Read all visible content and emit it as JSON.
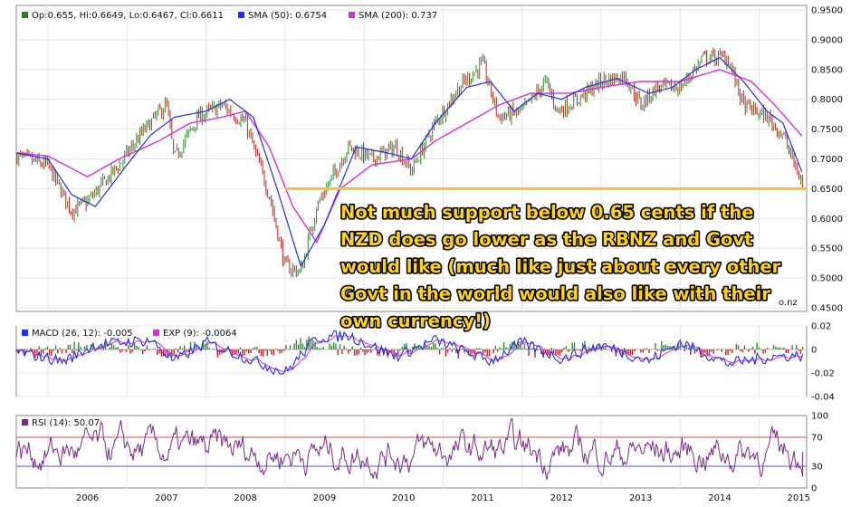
{
  "chart_data": [
    {
      "type": "candlestick",
      "legend": [
        {
          "label": "Op:0.655, Hi:0.6649, Lo:0.6467, Cl:0.6611",
          "color": "#2a7a2a"
        },
        {
          "label": "SMA (50): 0.6754",
          "color": "#1f2ff0"
        },
        {
          "label": "SMA (200): 0.737",
          "color": "#e22be0"
        }
      ],
      "ylim": [
        0.45,
        0.95
      ],
      "y_ticks": [
        "0.9500",
        "0.9000",
        "0.8500",
        "0.8000",
        "0.7500",
        "0.7000",
        "0.6500",
        "0.6000",
        "0.5500",
        "0.5000",
        "0.4500"
      ],
      "x_ticks": [
        "2006",
        "2007",
        "2008",
        "2009",
        "2010",
        "2011",
        "2012",
        "2013",
        "2014",
        "2015"
      ],
      "price_path": [
        [
          2005.6,
          0.705
        ],
        [
          2006.0,
          0.688
        ],
        [
          2006.3,
          0.613
        ],
        [
          2006.5,
          0.628
        ],
        [
          2006.9,
          0.69
        ],
        [
          2007.2,
          0.745
        ],
        [
          2007.5,
          0.792
        ],
        [
          2007.6,
          0.7
        ],
        [
          2007.9,
          0.77
        ],
        [
          2008.2,
          0.79
        ],
        [
          2008.5,
          0.76
        ],
        [
          2008.8,
          0.64
        ],
        [
          2009.0,
          0.52
        ],
        [
          2009.2,
          0.51
        ],
        [
          2009.4,
          0.62
        ],
        [
          2009.8,
          0.72
        ],
        [
          2010.1,
          0.7
        ],
        [
          2010.4,
          0.72
        ],
        [
          2010.6,
          0.68
        ],
        [
          2010.9,
          0.76
        ],
        [
          2011.2,
          0.82
        ],
        [
          2011.5,
          0.86
        ],
        [
          2011.7,
          0.77
        ],
        [
          2012.0,
          0.78
        ],
        [
          2012.3,
          0.83
        ],
        [
          2012.45,
          0.78
        ],
        [
          2012.7,
          0.8
        ],
        [
          2013.0,
          0.83
        ],
        [
          2013.3,
          0.84
        ],
        [
          2013.5,
          0.79
        ],
        [
          2013.7,
          0.82
        ],
        [
          2014.0,
          0.82
        ],
        [
          2014.3,
          0.87
        ],
        [
          2014.6,
          0.87
        ],
        [
          2014.8,
          0.79
        ],
        [
          2015.1,
          0.77
        ],
        [
          2015.3,
          0.74
        ],
        [
          2015.55,
          0.655
        ]
      ],
      "sma50_path": [
        [
          2005.6,
          0.71
        ],
        [
          2006.0,
          0.7
        ],
        [
          2006.3,
          0.64
        ],
        [
          2006.6,
          0.62
        ],
        [
          2007.0,
          0.69
        ],
        [
          2007.3,
          0.74
        ],
        [
          2007.6,
          0.77
        ],
        [
          2008.0,
          0.78
        ],
        [
          2008.3,
          0.8
        ],
        [
          2008.6,
          0.77
        ],
        [
          2008.9,
          0.65
        ],
        [
          2009.2,
          0.52
        ],
        [
          2009.5,
          0.59
        ],
        [
          2009.9,
          0.72
        ],
        [
          2010.3,
          0.71
        ],
        [
          2010.6,
          0.7
        ],
        [
          2010.9,
          0.76
        ],
        [
          2011.3,
          0.82
        ],
        [
          2011.6,
          0.83
        ],
        [
          2011.9,
          0.78
        ],
        [
          2012.2,
          0.81
        ],
        [
          2012.5,
          0.8
        ],
        [
          2012.8,
          0.82
        ],
        [
          2013.2,
          0.835
        ],
        [
          2013.6,
          0.81
        ],
        [
          2013.9,
          0.82
        ],
        [
          2014.2,
          0.85
        ],
        [
          2014.5,
          0.87
        ],
        [
          2014.8,
          0.83
        ],
        [
          2015.1,
          0.78
        ],
        [
          2015.3,
          0.76
        ],
        [
          2015.55,
          0.675
        ]
      ],
      "sma200_path": [
        [
          2005.6,
          0.71
        ],
        [
          2006.0,
          0.705
        ],
        [
          2006.5,
          0.67
        ],
        [
          2006.9,
          0.7
        ],
        [
          2007.4,
          0.73
        ],
        [
          2007.8,
          0.76
        ],
        [
          2008.2,
          0.77
        ],
        [
          2008.5,
          0.78
        ],
        [
          2008.8,
          0.72
        ],
        [
          2009.1,
          0.62
        ],
        [
          2009.4,
          0.56
        ],
        [
          2009.7,
          0.65
        ],
        [
          2010.1,
          0.69
        ],
        [
          2010.6,
          0.7
        ],
        [
          2010.9,
          0.73
        ],
        [
          2011.3,
          0.76
        ],
        [
          2011.7,
          0.79
        ],
        [
          2012.1,
          0.81
        ],
        [
          2012.6,
          0.81
        ],
        [
          2013.0,
          0.82
        ],
        [
          2013.5,
          0.83
        ],
        [
          2014.0,
          0.83
        ],
        [
          2014.5,
          0.85
        ],
        [
          2014.9,
          0.83
        ],
        [
          2015.2,
          0.79
        ],
        [
          2015.55,
          0.737
        ]
      ],
      "support_line": {
        "from": 2009.0,
        "to": 2015.6,
        "value": 0.65,
        "color": "#f2c13a"
      },
      "annotation": [
        "Not much support below 0.65 cents if the",
        "NZD does go lower as the RBNZ and Govt",
        "would like (much like just about every other",
        "Govt in the world would also like with their",
        "own currency!)"
      ],
      "watermark": "o.nz"
    },
    {
      "type": "line",
      "legend": [
        {
          "label": "MACD (26, 12): -0.005",
          "color": "#1f2ff0"
        },
        {
          "label": "EXP (9): -0.0064",
          "color": "#e22be0"
        }
      ],
      "ylim": [
        -0.04,
        0.02
      ],
      "y_ticks": [
        "0.02",
        "0",
        "-0.02",
        "-0.04"
      ],
      "shape": [
        [
          2005.6,
          -0.002
        ],
        [
          2006.2,
          -0.01
        ],
        [
          2006.6,
          0.004
        ],
        [
          2007.3,
          0.008
        ],
        [
          2007.6,
          -0.01
        ],
        [
          2008.0,
          0.006
        ],
        [
          2008.7,
          -0.012
        ],
        [
          2009.0,
          -0.02
        ],
        [
          2009.4,
          0.01
        ],
        [
          2009.8,
          0.012
        ],
        [
          2010.4,
          -0.006
        ],
        [
          2010.9,
          0.008
        ],
        [
          2011.6,
          -0.01
        ],
        [
          2012.0,
          0.006
        ],
        [
          2012.5,
          -0.008
        ],
        [
          2013.0,
          0.004
        ],
        [
          2013.6,
          -0.01
        ],
        [
          2014.0,
          0.006
        ],
        [
          2014.6,
          -0.012
        ],
        [
          2015.2,
          -0.006
        ],
        [
          2015.55,
          -0.005
        ]
      ]
    },
    {
      "type": "line",
      "legend": [
        {
          "label": "RSI (14): 50.07",
          "color": "#7b2a8c"
        }
      ],
      "ylim": [
        0,
        100
      ],
      "y_ticks": [
        "100",
        "70",
        "30",
        "0"
      ],
      "reference_lines": [
        70,
        30
      ],
      "last_value": 50.07
    }
  ]
}
